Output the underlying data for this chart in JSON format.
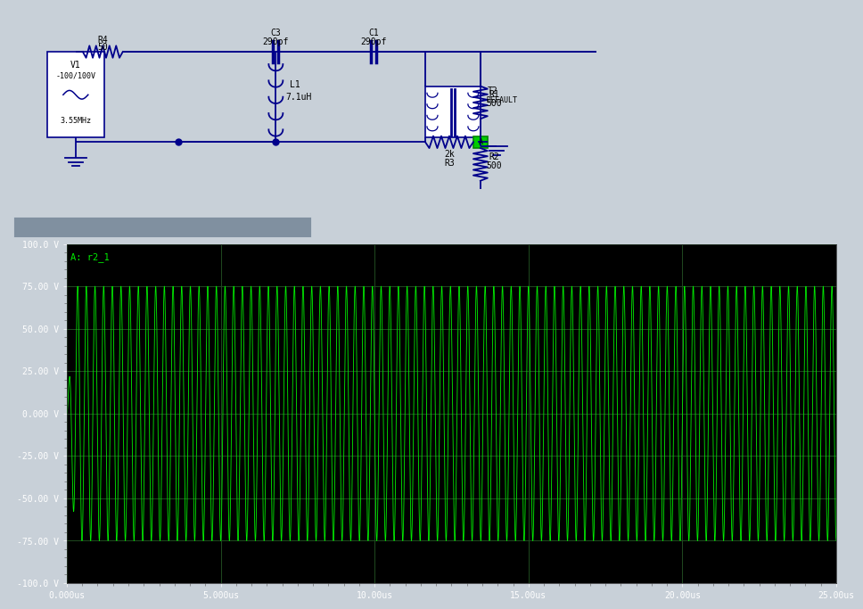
{
  "schematic": {
    "bg_color": "#ffffff",
    "wire_color": "#00008B",
    "text_color": "#000000",
    "fig_bg": "#c8d0d8"
  },
  "oscilloscope": {
    "bg_color": "#000000",
    "grid_color": "#1f4a1f",
    "trace_color": "#00ee00",
    "tick_color": "#ffffff",
    "label_color": "#00ee00",
    "y_min": -100.0,
    "y_max": 100.0,
    "x_min": 0.0,
    "x_max": 25.0,
    "y_ticks": [
      -100.0,
      -75.0,
      -50.0,
      -25.0,
      0.0,
      25.0,
      50.0,
      75.0,
      100.0
    ],
    "x_ticks": [
      0.0,
      5.0,
      10.0,
      15.0,
      20.0,
      25.0
    ],
    "x_tick_labels": [
      "0.000us",
      "5.000us",
      "10.00us",
      "15.00us",
      "20.00us",
      "25.00us"
    ],
    "y_tick_labels": [
      "-100.0 V",
      "-75.00 V",
      "-50.00 V",
      "-25.00 V",
      "0.000 V",
      "25.00 V",
      "50.00 V",
      "75.00 V",
      "100.0 V"
    ],
    "channel_label": "A: r2_1",
    "frequency_mhz": 3.55,
    "amplitude": 75.0,
    "total_time_us": 25.0,
    "num_points": 12000
  },
  "scrollbar": {
    "bg_color": "#b8c8d8",
    "bar_color": "#8090a0",
    "bar_width": 0.36
  },
  "layout": {
    "sch_height": 0.345,
    "scroll_height": 0.038,
    "osc_height": 0.617
  }
}
